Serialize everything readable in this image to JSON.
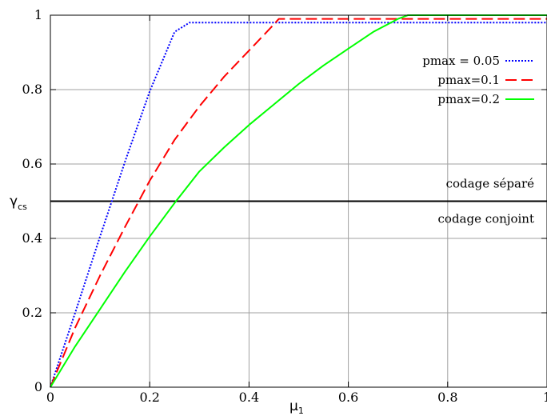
{
  "chart_data": {
    "type": "line",
    "title": "",
    "xlabel": "μ",
    "xlabel_sub": "1",
    "ylabel": "γ",
    "ylabel_sub": "cs",
    "xlim": [
      0,
      1
    ],
    "ylim": [
      0,
      1
    ],
    "xticks": [
      0,
      0.2,
      0.4,
      0.6,
      0.8,
      1
    ],
    "xtick_labels": [
      "0",
      "0.2",
      "0.4",
      "0.6",
      "0.8",
      "1"
    ],
    "yticks": [
      0,
      0.2,
      0.4,
      0.6,
      0.8,
      1
    ],
    "ytick_labels": [
      "0",
      "0.2",
      "0.4",
      "0.6",
      "0.8",
      "1"
    ],
    "grid": true,
    "legend_position": "top-right",
    "series": [
      {
        "name": "pmax = 0.05",
        "color": "#0000ff",
        "dash": "dotted",
        "x": [
          0,
          0.05,
          0.1,
          0.15,
          0.2,
          0.25,
          0.28,
          0.4,
          0.6,
          0.8,
          1.0
        ],
        "y": [
          0,
          0.2,
          0.405,
          0.605,
          0.795,
          0.955,
          0.98,
          0.98,
          0.98,
          0.98,
          0.98
        ]
      },
      {
        "name": "pmax=0.1",
        "color": "#ff0000",
        "dash": "dashed",
        "x": [
          0,
          0.05,
          0.1,
          0.15,
          0.2,
          0.25,
          0.3,
          0.35,
          0.4,
          0.45,
          0.46,
          0.6,
          0.8,
          1.0
        ],
        "y": [
          0,
          0.16,
          0.3,
          0.43,
          0.555,
          0.665,
          0.755,
          0.835,
          0.905,
          0.975,
          0.99,
          0.99,
          0.99,
          0.99
        ]
      },
      {
        "name": "pmax=0.2",
        "color": "#00ff00",
        "dash": "solid",
        "x": [
          0,
          0.05,
          0.1,
          0.15,
          0.2,
          0.25,
          0.3,
          0.35,
          0.4,
          0.45,
          0.5,
          0.55,
          0.6,
          0.65,
          0.7,
          0.72,
          0.8,
          0.9,
          1.0
        ],
        "y": [
          0,
          0.11,
          0.21,
          0.31,
          0.405,
          0.495,
          0.58,
          0.645,
          0.705,
          0.76,
          0.815,
          0.865,
          0.91,
          0.955,
          0.99,
          1.0,
          1.0,
          1.0,
          1.0
        ]
      }
    ],
    "reference_line": {
      "y": 0.5,
      "color": "#000000"
    },
    "annotations": [
      "codage séparé",
      "codage conjoint"
    ]
  }
}
